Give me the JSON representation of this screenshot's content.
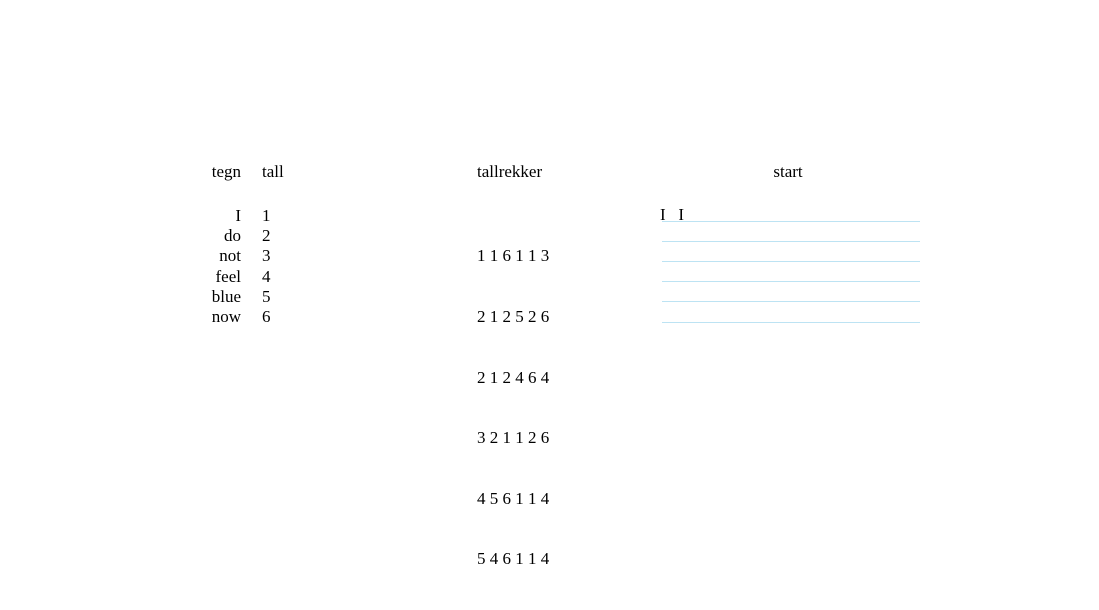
{
  "page": {
    "background_color": "#ffffff",
    "text_color": "#000000",
    "rule_line_color": "#BDE3F3"
  },
  "signs_table": {
    "header": {
      "sign_label": "tegn",
      "number_label": "tall"
    },
    "rows": [
      {
        "sign": "I",
        "number": "1"
      },
      {
        "sign": "do",
        "number": "2"
      },
      {
        "sign": "not",
        "number": "3"
      },
      {
        "sign": "feel",
        "number": "4"
      },
      {
        "sign": "blue",
        "number": "5"
      },
      {
        "sign": "now",
        "number": "6"
      }
    ]
  },
  "sequences": {
    "header": "tallrekker",
    "rows": [
      "1 1 6 1 1 3",
      "2 1 2 5 2 6",
      "2 1 2 4 6 4",
      "3 2 1 1 2 6",
      "4 5 6 1 1 4",
      "5 4 6 1 1 4"
    ]
  },
  "answer_area": {
    "header": "start",
    "line_count": 6,
    "written_text": "I   I"
  }
}
